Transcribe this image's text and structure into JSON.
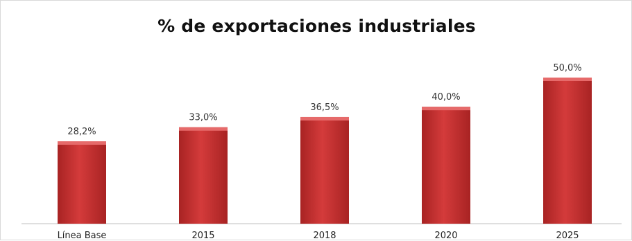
{
  "chart_data": {
    "type": "bar",
    "title": "% de exportaciones industriales",
    "categories": [
      "Línea Base",
      "2015",
      "2018",
      "2020",
      "2025"
    ],
    "values": [
      28.2,
      33.0,
      36.5,
      40.0,
      50.0
    ],
    "value_labels": [
      "28,2%",
      "33,0%",
      "36,5%",
      "40,0%",
      "50,0%"
    ],
    "xlabel": "",
    "ylabel": "",
    "ylim": [
      0,
      50
    ],
    "grid": false,
    "legend": "none",
    "colors": {
      "bar": "#d43b3b",
      "bar_dark": "#a82323",
      "bar_light": "#e66a6a",
      "axis": "#bfbfbf"
    }
  }
}
